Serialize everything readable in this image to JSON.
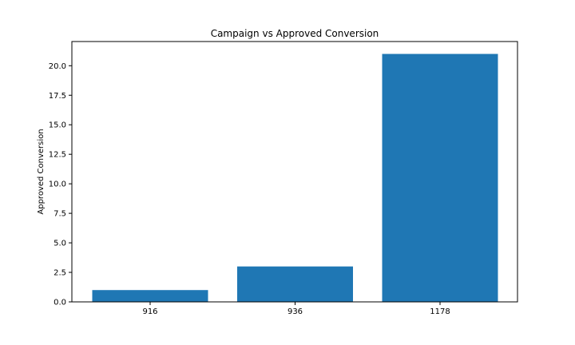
{
  "chart_data": {
    "type": "bar",
    "title": "Campaign vs Approved Conversion",
    "xlabel": "",
    "ylabel": "Approved Conversion",
    "categories": [
      "916",
      "936",
      "1178"
    ],
    "values": [
      1,
      3,
      21
    ],
    "ylim": [
      0,
      22.05
    ],
    "yticks": [
      0.0,
      2.5,
      5.0,
      7.5,
      10.0,
      12.5,
      15.0,
      17.5,
      20.0
    ],
    "ytick_labels": [
      "0.0",
      "2.5",
      "5.0",
      "7.5",
      "10.0",
      "12.5",
      "15.0",
      "17.5",
      "20.0"
    ],
    "bar_color": "#1f77b4",
    "grid": false,
    "legend": "none"
  }
}
